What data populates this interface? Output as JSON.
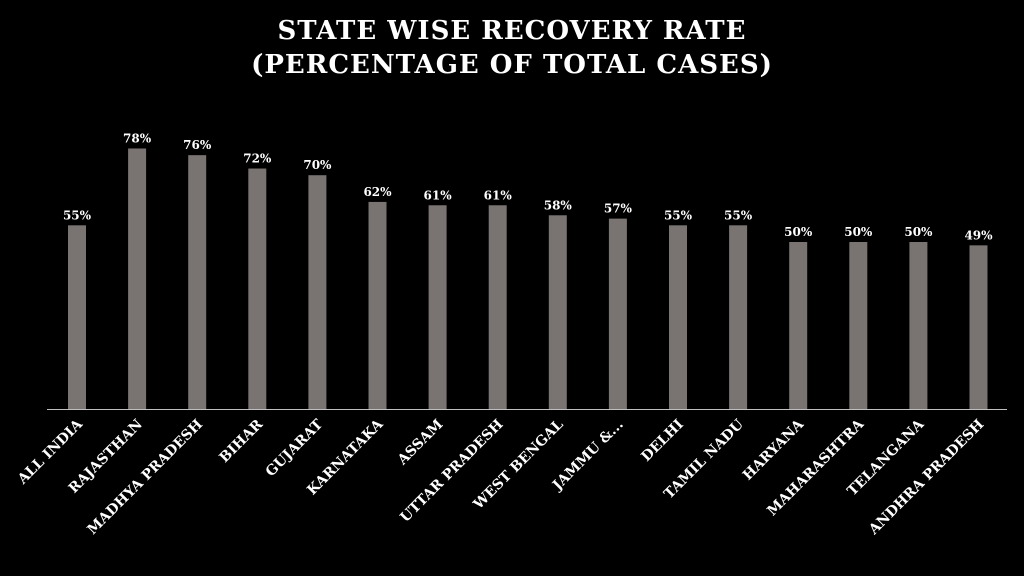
{
  "chart_data": {
    "type": "bar",
    "title": "STATE WISE RECOVERY RATE",
    "subtitle": "(PERCENTAGE OF TOTAL CASES)",
    "categories": [
      "ALL INDIA",
      "RAJASTHAN",
      "MADHYA PRADESH",
      "BIHAR",
      "GUJARAT",
      "KARNATAKA",
      "ASSAM",
      "UTTAR PRADESH",
      "WEST BENGAL",
      "JAMMU &...",
      "DELHI",
      "TAMIL NADU",
      "HARYANA",
      "MAHARASHTRA",
      "TELANGANA",
      "ANDHRA PRADESH"
    ],
    "values": [
      55,
      78,
      76,
      72,
      70,
      62,
      61,
      61,
      58,
      57,
      55,
      55,
      50,
      50,
      50,
      49
    ],
    "data_labels": [
      "55%",
      "78%",
      "76%",
      "72%",
      "70%",
      "62%",
      "61%",
      "61%",
      "58%",
      "57%",
      "55%",
      "55%",
      "50%",
      "50%",
      "50%",
      "49%"
    ],
    "ylim": [
      0,
      90
    ],
    "grid": false,
    "legend": "none",
    "bar_color": "#797372",
    "background_color": "#000000",
    "text_color": "#ffffff"
  }
}
